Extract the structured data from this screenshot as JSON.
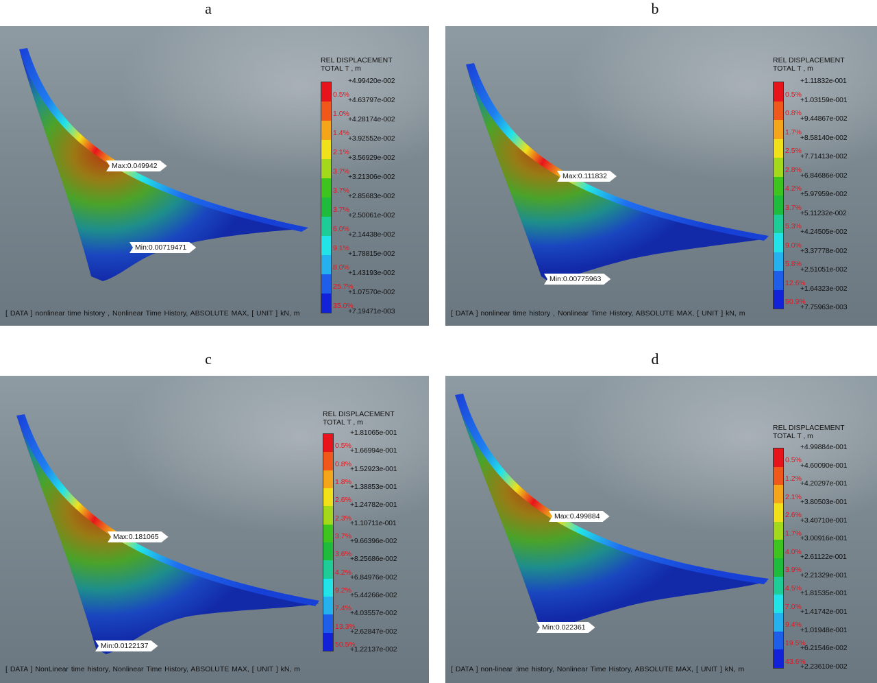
{
  "panels": [
    {
      "letter": "a",
      "legend_title_1": "REL DISPLACEMENT",
      "legend_title_2": "TOTAL T , m",
      "values": [
        "+4.99420e-002",
        "+4.63797e-002",
        "+4.28174e-002",
        "+3.92552e-002",
        "+3.56929e-002",
        "+3.21306e-002",
        "+2.85683e-002",
        "+2.50061e-002",
        "+2.14438e-002",
        "+1.78815e-002",
        "+1.43193e-002",
        "+1.07570e-002",
        "+7.19471e-003"
      ],
      "percents": [
        "0.5%",
        "1.0%",
        "1.4%",
        "2.1%",
        "3.7%",
        "3.7%",
        "3.7%",
        "6.0%",
        "9.1%",
        "8.0%",
        "25.7%",
        "35.0%"
      ],
      "max_label": "Max:0.049942",
      "min_label": "Min:0.00719471",
      "footer": "[ DATA ]  nonlinear time history ,  Nonlinear Time History,  ABSOLUTE MAX,  [ UNIT ]   kN,  m"
    },
    {
      "letter": "b",
      "legend_title_1": "REL DISPLACEMENT",
      "legend_title_2": "TOTAL T , m",
      "values": [
        "+1.11832e-001",
        "+1.03159e-001",
        "+9.44867e-002",
        "+8.58140e-002",
        "+7.71413e-002",
        "+6.84686e-002",
        "+5.97959e-002",
        "+5.11232e-002",
        "+4.24505e-002",
        "+3.37778e-002",
        "+2.51051e-002",
        "+1.64323e-002",
        "+7.75963e-003"
      ],
      "percents": [
        "0.5%",
        "0.8%",
        "1.7%",
        "2.5%",
        "2.8%",
        "4.2%",
        "3.7%",
        "5.3%",
        "9.0%",
        "5.8%",
        "12.6%",
        "50.9%"
      ],
      "max_label": "Max:0.111832",
      "min_label": "Min:0.00775963",
      "footer": "[ DATA ]  nonlinear time history ,  Nonlinear Time History,  ABSOLUTE MAX,  [ UNIT ]   kN,  m"
    },
    {
      "letter": "c",
      "legend_title_1": "REL DISPLACEMENT",
      "legend_title_2": "TOTAL T , m",
      "values": [
        "+1.81065e-001",
        "+1.66994e-001",
        "+1.52923e-001",
        "+1.38853e-001",
        "+1.24782e-001",
        "+1.10711e-001",
        "+9.66396e-002",
        "+8.25686e-002",
        "+6.84976e-002",
        "+5.44266e-002",
        "+4.03557e-002",
        "+2.62847e-002",
        "+1.22137e-002"
      ],
      "percents": [
        "0.5%",
        "0.8%",
        "1.8%",
        "2.6%",
        "2.3%",
        "3.7%",
        "3.6%",
        "4.2%",
        "9.2%",
        "7.4%",
        "13.3%",
        "50.5%"
      ],
      "max_label": "Max:0.181065",
      "min_label": "Min:0.0122137",
      "footer": "[ DATA ]  NonLinear time history,  Nonlinear Time History,  ABSOLUTE MAX,  [ UNIT ]   kN,  m"
    },
    {
      "letter": "d",
      "legend_title_1": "REL DISPLACEMENT",
      "legend_title_2": "TOTAL T , m",
      "values": [
        "+4.99884e-001",
        "+4.60090e-001",
        "+4.20297e-001",
        "+3.80503e-001",
        "+3.40710e-001",
        "+3.00916e-001",
        "+2.61122e-001",
        "+2.21329e-001",
        "+1.81535e-001",
        "+1.41742e-001",
        "+1.01948e-001",
        "+6.21546e-002",
        "+2.23610e-002"
      ],
      "percents": [
        "0.5%",
        "1.2%",
        "2.1%",
        "2.6%",
        "1.7%",
        "4.0%",
        "3.9%",
        "4.5%",
        "7.0%",
        "9.4%",
        "19.5%",
        "43.6%"
      ],
      "max_label": "Max:0.499884",
      "min_label": "Min:0.022361",
      "footer": "[ DATA ]  non-linear :ime history,  Nonlinear Time History,  ABSOLUTE MAX,  [ UNIT ]   kN,  m"
    }
  ],
  "colors": {
    "scale": [
      "#e8141c",
      "#f0571a",
      "#f5a51a",
      "#f0e11a",
      "#a4d81a",
      "#3dc41e",
      "#1fbb3c",
      "#1dcc96",
      "#22e3e8",
      "#25b0ee",
      "#1f5ee8",
      "#1222d8"
    ],
    "percent_text": "#e8141c",
    "viewport_bg": "#7c8890"
  }
}
